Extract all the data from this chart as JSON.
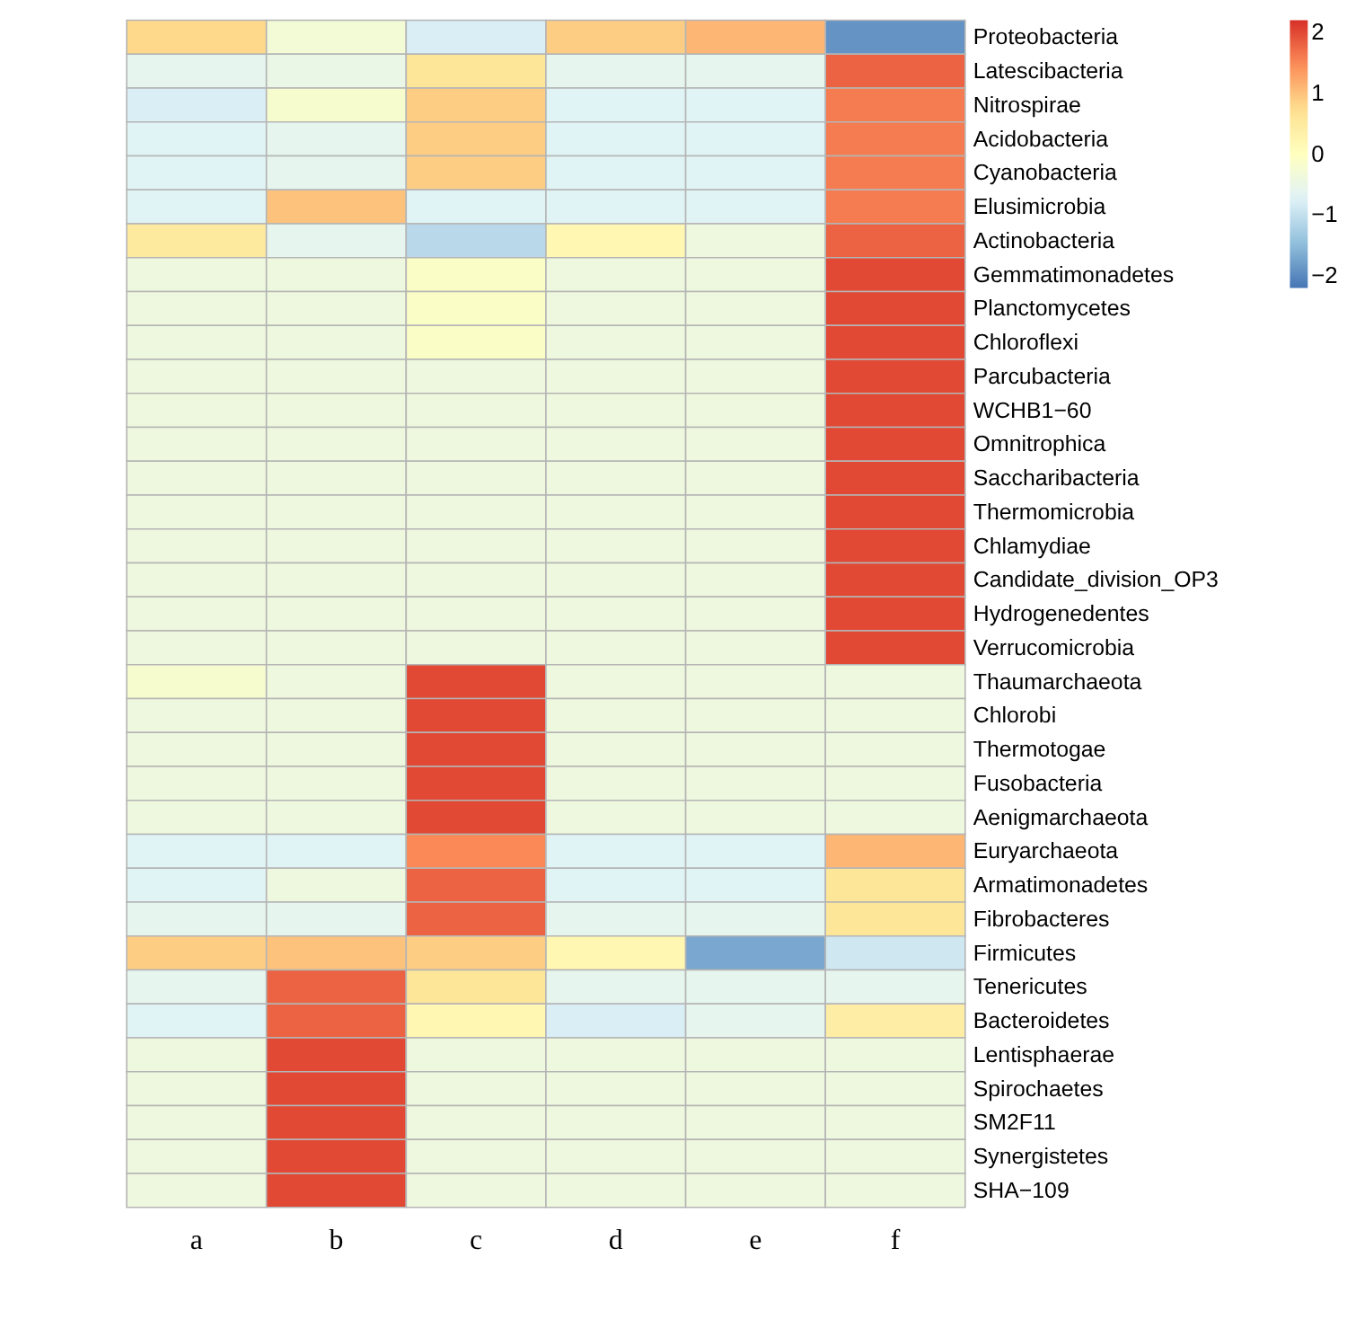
{
  "chart_data": {
    "type": "heatmap",
    "categories": [
      "a",
      "b",
      "c",
      "d",
      "e",
      "f"
    ],
    "y_categories": [
      "Proteobacteria",
      "Latescibacteria",
      "Nitrospirae",
      "Acidobacteria",
      "Cyanobacteria",
      "Elusimicrobia",
      "Actinobacteria",
      "Gemmatimonadetes",
      "Planctomycetes",
      "Chloroflexi",
      "Parcubacteria",
      "WCHB1−60",
      "Omnitrophica",
      "Saccharibacteria",
      "Thermomicrobia",
      "Chlamydiae",
      "Candidate_division_OP3",
      "Hydrogenedentes",
      "Verrucomicrobia",
      "Thaumarchaeota",
      "Chlorobi",
      "Thermotogae",
      "Fusobacteria",
      "Aenigmarchaeota",
      "Euryarchaeota",
      "Armatimonadetes",
      "Fibrobacteres",
      "Firmicutes",
      "Tenericutes",
      "Bacteroidetes",
      "Lentisphaerae",
      "Spirochaetes",
      "SM2F11",
      "Synergistetes",
      "SHA−109"
    ],
    "cells": [
      [
        0.8,
        -0.3,
        -0.8,
        0.9,
        1.1,
        -1.9
      ],
      [
        -0.6,
        -0.5,
        0.6,
        -0.6,
        -0.6,
        1.8
      ],
      [
        -0.8,
        -0.2,
        0.9,
        -0.7,
        -0.7,
        1.6
      ],
      [
        -0.7,
        -0.6,
        0.9,
        -0.7,
        -0.7,
        1.6
      ],
      [
        -0.7,
        -0.6,
        0.9,
        -0.7,
        -0.7,
        1.6
      ],
      [
        -0.7,
        1.0,
        -0.7,
        -0.7,
        -0.7,
        1.6
      ],
      [
        0.5,
        -0.6,
        -1.1,
        0.2,
        -0.4,
        1.8
      ],
      [
        -0.4,
        -0.4,
        -0.1,
        -0.4,
        -0.4,
        2.0
      ],
      [
        -0.4,
        -0.4,
        -0.1,
        -0.4,
        -0.4,
        2.0
      ],
      [
        -0.4,
        -0.4,
        -0.1,
        -0.4,
        -0.4,
        2.0
      ],
      [
        -0.4,
        -0.4,
        -0.4,
        -0.4,
        -0.4,
        2.0
      ],
      [
        -0.4,
        -0.4,
        -0.4,
        -0.4,
        -0.4,
        2.0
      ],
      [
        -0.4,
        -0.4,
        -0.4,
        -0.4,
        -0.4,
        2.0
      ],
      [
        -0.4,
        -0.4,
        -0.4,
        -0.4,
        -0.4,
        2.0
      ],
      [
        -0.4,
        -0.4,
        -0.4,
        -0.4,
        -0.4,
        2.0
      ],
      [
        -0.4,
        -0.4,
        -0.4,
        -0.4,
        -0.4,
        2.0
      ],
      [
        -0.4,
        -0.4,
        -0.4,
        -0.4,
        -0.4,
        2.0
      ],
      [
        -0.4,
        -0.4,
        -0.4,
        -0.4,
        -0.4,
        2.0
      ],
      [
        -0.4,
        -0.4,
        -0.4,
        -0.4,
        -0.4,
        2.0
      ],
      [
        -0.2,
        -0.4,
        2.0,
        -0.4,
        -0.4,
        -0.4
      ],
      [
        -0.4,
        -0.4,
        2.0,
        -0.4,
        -0.4,
        -0.4
      ],
      [
        -0.4,
        -0.4,
        2.0,
        -0.4,
        -0.4,
        -0.4
      ],
      [
        -0.4,
        -0.4,
        2.0,
        -0.4,
        -0.4,
        -0.4
      ],
      [
        -0.4,
        -0.4,
        2.0,
        -0.4,
        -0.4,
        -0.4
      ],
      [
        -0.7,
        -0.7,
        1.5,
        -0.7,
        -0.7,
        1.1
      ],
      [
        -0.7,
        -0.4,
        1.8,
        -0.7,
        -0.7,
        0.6
      ],
      [
        -0.6,
        -0.6,
        1.8,
        -0.6,
        -0.6,
        0.6
      ],
      [
        0.9,
        1.0,
        0.9,
        0.2,
        -1.7,
        -0.9
      ],
      [
        -0.6,
        1.8,
        0.6,
        -0.6,
        -0.6,
        -0.6
      ],
      [
        -0.7,
        1.8,
        0.2,
        -0.8,
        -0.6,
        0.4
      ],
      [
        -0.4,
        2.0,
        -0.4,
        -0.4,
        -0.4,
        -0.4
      ],
      [
        -0.4,
        2.0,
        -0.4,
        -0.4,
        -0.4,
        -0.4
      ],
      [
        -0.4,
        2.0,
        -0.4,
        -0.4,
        -0.4,
        -0.4
      ],
      [
        -0.4,
        2.0,
        -0.4,
        -0.4,
        -0.4,
        -0.4
      ],
      [
        -0.4,
        2.0,
        -0.4,
        -0.4,
        -0.4,
        -0.4
      ]
    ],
    "clim": [
      -2.2,
      2.2
    ],
    "cticks": [
      -2,
      -1,
      0,
      1,
      2
    ]
  }
}
